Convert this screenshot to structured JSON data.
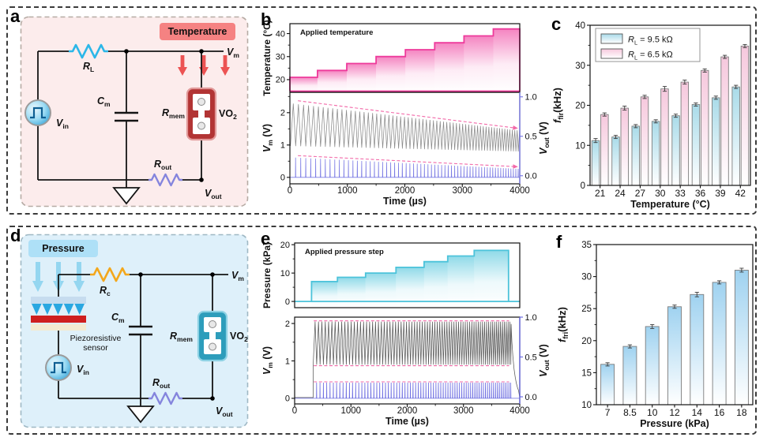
{
  "figure": {
    "panel_letters": [
      "a",
      "b",
      "c",
      "d",
      "e",
      "f"
    ]
  },
  "circuit_a": {
    "stimulus_tag": "Temperature",
    "vin": {
      "main": "V",
      "sub": "in"
    },
    "rl": {
      "main": "R",
      "sub": "L"
    },
    "cm": {
      "main": "C",
      "sub": "m"
    },
    "rmem": {
      "main": "R",
      "sub": "mem"
    },
    "device_name": "VO",
    "device_sub": "2",
    "rout": {
      "main": "R",
      "sub": "out"
    },
    "vm": {
      "main": "V",
      "sub": "m"
    },
    "vout": {
      "main": "V",
      "sub": "out"
    }
  },
  "circuit_d": {
    "stimulus_tag": "Pressure",
    "sensor_line1": "Piezoresistive",
    "sensor_line2": "sensor",
    "vin": {
      "main": "V",
      "sub": "in"
    },
    "rc": {
      "main": "R",
      "sub": "c"
    },
    "cm": {
      "main": "C",
      "sub": "m"
    },
    "rmem": {
      "main": "R",
      "sub": "mem"
    },
    "device_name": "VO",
    "device_sub": "2",
    "rout": {
      "main": "R",
      "sub": "out"
    },
    "vm": {
      "main": "V",
      "sub": "m"
    },
    "vout": {
      "main": "V",
      "sub": "out"
    }
  },
  "chart_data": [
    {
      "id": "b",
      "type": "line",
      "xlabel": "Time (µs)",
      "xlim": [
        0,
        4000
      ],
      "xticks": [
        0,
        1000,
        2000,
        3000,
        4000
      ],
      "xticks_minor": [
        500,
        1500,
        2500,
        3500
      ],
      "stimulus": {
        "legend": "Applied temperature",
        "ylabel": "Temperature (°C)",
        "ylim": [
          14.5,
          44.3
        ],
        "yticks": [
          20,
          30,
          40
        ],
        "yticks_minor": [
          25,
          35
        ],
        "color": "#ee3a9b",
        "baseline_value": 15.0,
        "steps": [
          {
            "t0": 0,
            "t1": 480,
            "value": 21
          },
          {
            "t0": 480,
            "t1": 990,
            "value": 24
          },
          {
            "t0": 990,
            "t1": 1500,
            "value": 27
          },
          {
            "t0": 1500,
            "t1": 2010,
            "value": 30
          },
          {
            "t0": 2010,
            "t1": 2520,
            "value": 33
          },
          {
            "t0": 2520,
            "t1": 3030,
            "value": 36
          },
          {
            "t0": 3030,
            "t1": 3540,
            "value": 39
          },
          {
            "t0": 3540,
            "t1": 4000,
            "value": 42
          }
        ]
      },
      "response": {
        "ylabel_left": {
          "main": "V",
          "sub": "m",
          "rest": " (V)"
        },
        "ylim_left": [
          -0.2,
          2.63
        ],
        "yticks_left": [
          0,
          1,
          2
        ],
        "yticks_left_minor": [
          0.5,
          1.5,
          2.5
        ],
        "ylabel_right": {
          "main": "V",
          "sub": "out",
          "rest": " (V)"
        },
        "yticks_right": [
          "0.0",
          "0.5",
          "1.0"
        ],
        "right_axis_map": {
          "offset": 0.05,
          "scale": 2.44
        },
        "vm_color": "#8a8a8a",
        "vout_color": "#7b7be4",
        "envelope_color": "#f268a8",
        "oscillation": {
          "t_start": 10,
          "t_end": 4000,
          "period_start": 90,
          "period_end": 41,
          "top_start": 2.28,
          "top_end": 1.44,
          "bottom_start": 0.97,
          "bottom_end": 0.8
        },
        "spikes": {
          "height_start": 0.62,
          "height_end": 0.26
        },
        "envelopes": [
          {
            "x0": 140,
            "y0": 2.37,
            "x1": 3950,
            "y1": 1.52,
            "arrow": true
          },
          {
            "x0": 140,
            "y0": 0.67,
            "x1": 3950,
            "y1": 0.33,
            "arrow": true
          }
        ]
      }
    },
    {
      "id": "e",
      "type": "line",
      "xlabel": "Time (µs)",
      "xlim": [
        0,
        4000
      ],
      "xticks": [
        0,
        1000,
        2000,
        3000,
        4000
      ],
      "xticks_minor": [
        500,
        1500,
        2500,
        3500
      ],
      "stimulus": {
        "legend": "Applied pressure step",
        "ylabel": "Pressure (kPa)",
        "ylim": [
          -2.2,
          20.6
        ],
        "yticks": [
          0,
          10,
          20
        ],
        "yticks_minor": [
          5,
          15
        ],
        "color": "#4cc3da",
        "baseline_value": 0,
        "steps": [
          {
            "t0": 300,
            "t1": 760,
            "value": 7
          },
          {
            "t0": 760,
            "t1": 1260,
            "value": 8.5
          },
          {
            "t0": 1260,
            "t1": 1800,
            "value": 10
          },
          {
            "t0": 1800,
            "t1": 2300,
            "value": 12
          },
          {
            "t0": 2300,
            "t1": 2720,
            "value": 14
          },
          {
            "t0": 2720,
            "t1": 3190,
            "value": 16
          },
          {
            "t0": 3190,
            "t1": 3800,
            "value": 18
          }
        ]
      },
      "response": {
        "ylabel_left": {
          "main": "V",
          "sub": "m",
          "rest": " (V)"
        },
        "ylim_left": [
          -0.15,
          2.17
        ],
        "yticks_left": [
          0,
          1,
          2
        ],
        "yticks_left_minor": [
          0.5,
          1.5
        ],
        "ylabel_right": {
          "main": "V",
          "sub": "out",
          "rest": " (V)"
        },
        "yticks_right": [
          "0.0",
          "0.5",
          "1.0"
        ],
        "right_axis_map": {
          "offset": 0.04,
          "scale": 2.13
        },
        "vm_color": "#5a5a5a",
        "vout_color": "#6a6ae0",
        "envelope_color": "#f268a8",
        "pre_flat": {
          "t0": 0,
          "t1": 330,
          "value": 0.02
        },
        "oscillation": {
          "t_start": 330,
          "t_end": 3810,
          "period_start": 61,
          "period_end": 33,
          "top_start": 2.05,
          "top_end": 2.05,
          "bottom_start": 0.9,
          "bottom_end": 0.9
        },
        "decay": {
          "t_end": 3990,
          "tau": 60
        },
        "spikes": {
          "height_start": 0.42,
          "height_end": 0.42
        },
        "envelopes": [
          {
            "x0": 340,
            "y0": 2.07,
            "x1": 3810,
            "y1": 2.07,
            "arrow": false
          },
          {
            "x0": 340,
            "y0": 0.87,
            "x1": 3810,
            "y1": 0.87,
            "arrow": false
          },
          {
            "x0": 340,
            "y0": 0.44,
            "x1": 3810,
            "y1": 0.44,
            "arrow": false
          }
        ]
      }
    },
    {
      "id": "c",
      "type": "bar",
      "categories": [
        "21",
        "24",
        "27",
        "30",
        "33",
        "36",
        "39",
        "42"
      ],
      "xlabel": "Temperature (°C)",
      "ylabel": {
        "main": "f",
        "sub": "fir",
        "rest": "(kHz)"
      },
      "ylim": [
        0,
        40
      ],
      "yticks": [
        0,
        10,
        20,
        30,
        40
      ],
      "yticks_minor": [
        5,
        15,
        25,
        35
      ],
      "legend_position": "top-left",
      "series": [
        {
          "label": {
            "main": "R",
            "sub": "L",
            "rest": " = 9.5 kΩ"
          },
          "color": "#a9dbe9",
          "values": [
            11.2,
            12.1,
            14.8,
            16.0,
            17.4,
            20.2,
            21.9,
            24.6
          ],
          "errors": [
            0.5,
            0.4,
            0.4,
            0.4,
            0.4,
            0.4,
            0.4,
            0.4
          ]
        },
        {
          "label": {
            "main": "R",
            "sub": "L",
            "rest": " = 6.5 kΩ"
          },
          "color": "#f6c8dd",
          "values": [
            17.7,
            19.3,
            22.1,
            24.1,
            25.8,
            28.7,
            32.1,
            34.8
          ],
          "errors": [
            0.4,
            0.5,
            0.4,
            0.6,
            0.5,
            0.4,
            0.4,
            0.4
          ]
        }
      ]
    },
    {
      "id": "f",
      "type": "bar",
      "categories": [
        "7",
        "8.5",
        "10",
        "12",
        "14",
        "16",
        "18"
      ],
      "xlabel": "Pressure (kPa)",
      "ylabel": {
        "main": "f",
        "sub": "fri",
        "rest": "(kHz)"
      },
      "ylim": [
        10,
        35
      ],
      "yticks": [
        10,
        15,
        20,
        25,
        30,
        35
      ],
      "yticks_minor": [
        12.5,
        17.5,
        22.5,
        27.5,
        32.5
      ],
      "series": [
        {
          "color": "#9fd2f0",
          "values": [
            16.3,
            19.1,
            22.2,
            25.3,
            27.2,
            29.1,
            31.0
          ],
          "errors": [
            0.25,
            0.25,
            0.3,
            0.25,
            0.35,
            0.25,
            0.3
          ]
        }
      ]
    }
  ]
}
